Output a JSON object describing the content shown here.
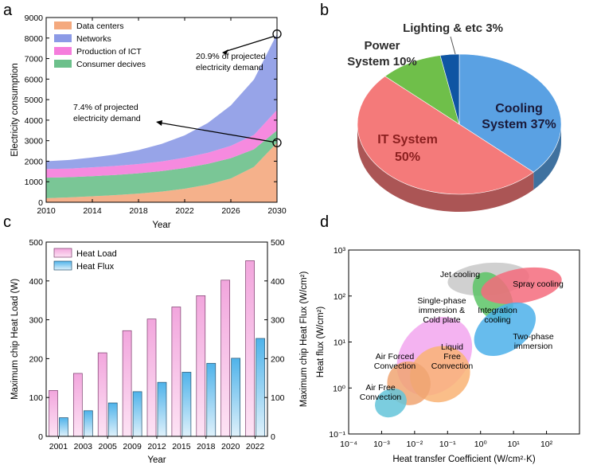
{
  "panels": {
    "a": "a",
    "b": "b",
    "c": "c",
    "d": "d"
  },
  "chart_data": [
    {
      "id": "a",
      "type": "area",
      "stacked": true,
      "xlabel": "Year",
      "ylabel": "Electricity consumption",
      "xlim": [
        2010,
        2030
      ],
      "ylim": [
        0,
        9000
      ],
      "xticks": [
        2010,
        2014,
        2018,
        2022,
        2026,
        2030
      ],
      "yticks": [
        0,
        1000,
        2000,
        3000,
        4000,
        5000,
        6000,
        7000,
        8000,
        9000
      ],
      "x": [
        2010,
        2012,
        2014,
        2016,
        2018,
        2020,
        2022,
        2024,
        2026,
        2028,
        2030
      ],
      "series": [
        {
          "name": "Data centers",
          "color": "#f4a97e",
          "values": [
            200,
            240,
            290,
            350,
            420,
            520,
            660,
            860,
            1160,
            1720,
            2900
          ]
        },
        {
          "name": "Consumer decives",
          "color": "#6cc08b",
          "values": [
            1000,
            980,
            980,
            980,
            990,
            1000,
            1010,
            1010,
            990,
            860,
            600
          ]
        },
        {
          "name": "Production of ICT",
          "color": "#f57ddc",
          "values": [
            420,
            420,
            430,
            440,
            450,
            470,
            500,
            540,
            600,
            700,
            1000
          ]
        },
        {
          "name": "Networks",
          "color": "#8c9ae6",
          "values": [
            380,
            420,
            480,
            560,
            680,
            850,
            1090,
            1450,
            1970,
            2700,
            3700
          ]
        }
      ],
      "legend_order": [
        "Data centers",
        "Networks",
        "Production of ICT",
        "Consumer decives"
      ],
      "annotations": [
        {
          "text_lines": [
            "20.9% of projected",
            "electricity demand"
          ],
          "x": 2030,
          "y": 8200
        },
        {
          "text_lines": [
            "7.4% of projected",
            "electricity demand"
          ],
          "x": 2030,
          "y": 2900
        }
      ]
    },
    {
      "id": "b",
      "type": "pie",
      "labels": [
        "Cooling System 37%",
        "IT System 50%",
        "Power System 10%",
        "Lighting & etc 3%"
      ],
      "label_lines": [
        [
          "Cooling",
          "System 37%"
        ],
        [
          "IT System",
          "50%"
        ],
        [
          "Power",
          "System 10%"
        ],
        [
          "Lighting & etc 3%"
        ]
      ],
      "values": [
        37,
        50,
        10,
        3
      ],
      "colors": [
        "#5aa1e3",
        "#f47a7a",
        "#6fbf4a",
        "#0f55a3"
      ]
    },
    {
      "id": "c",
      "type": "bar",
      "categories": [
        "2001",
        "2003",
        "2005",
        "2009",
        "2012",
        "2015",
        "2018",
        "2020",
        "2022"
      ],
      "series": [
        {
          "name": "Heat Load",
          "axis": "left",
          "values": [
            118,
            162,
            215,
            272,
            302,
            333,
            362,
            402,
            452
          ]
        },
        {
          "name": "Heat Flux",
          "axis": "right",
          "values": [
            48,
            66,
            86,
            115,
            139,
            165,
            188,
            201,
            252
          ]
        }
      ],
      "xlabel": "Year",
      "ylabel": "Maximum chip Heat Load (W)",
      "y2label": "Maximum chip Heat Flux (W/cm²)",
      "ylim": [
        0,
        500
      ],
      "yticks": [
        0,
        100,
        200,
        300,
        400,
        500
      ]
    },
    {
      "id": "d",
      "type": "scatter",
      "xscale": "log",
      "yscale": "log",
      "xlabel": "Heat transfer Coefficient (W/cm²·K)",
      "ylabel": "Heat flux (W/cm²)",
      "xlim": [
        0.0001,
        1000
      ],
      "ylim": [
        0.1,
        1000
      ],
      "xticks": [
        "10⁻⁴",
        "10⁻³",
        "10⁻²",
        "10⁻¹",
        "10⁰",
        "10¹",
        "10²"
      ],
      "yticks": [
        "10⁻¹",
        "10⁰",
        "10¹",
        "10²",
        "10³"
      ],
      "regions": [
        {
          "label_lines": [
            "Jet cooling"
          ],
          "color": "#c8c8c8",
          "x_range": [
            0.1,
            30
          ],
          "y_range": [
            60,
            900
          ]
        },
        {
          "label_lines": [
            "Integration",
            "cooling"
          ],
          "color": "#5cc466",
          "x_range": [
            0.7,
            8
          ],
          "y_range": [
            10,
            900
          ]
        },
        {
          "label_lines": [
            "Spray cooling"
          ],
          "color": "#f56b7d",
          "x_range": [
            1,
            300
          ],
          "y_range": [
            40,
            700
          ]
        },
        {
          "label_lines": [
            "Two-phase",
            "immersion"
          ],
          "color": "#4cb0ea",
          "x_range": [
            0.5,
            60
          ],
          "y_range": [
            3,
            120
          ]
        },
        {
          "label_lines": [
            "Single-phase",
            "immersion &",
            "Cold plate"
          ],
          "color": "#f2a6ee",
          "x_range": [
            0.002,
            0.8
          ],
          "y_range": [
            0.3,
            80
          ]
        },
        {
          "label_lines": [
            "Liquid",
            "Free",
            "Convection"
          ],
          "color": "#f9b374",
          "x_range": [
            0.007,
            0.5
          ],
          "y_range": [
            0.2,
            20
          ]
        },
        {
          "label_lines": [
            "Air Forced",
            "Convection"
          ],
          "color": "#f0a472",
          "x_range": [
            0.0015,
            0.03
          ],
          "y_range": [
            0.2,
            8
          ]
        },
        {
          "label_lines": [
            "Air Free",
            "Convection"
          ],
          "color": "#64c4d9",
          "x_range": [
            0.0006,
            0.006
          ],
          "y_range": [
            0.15,
            1.5
          ]
        }
      ]
    }
  ]
}
